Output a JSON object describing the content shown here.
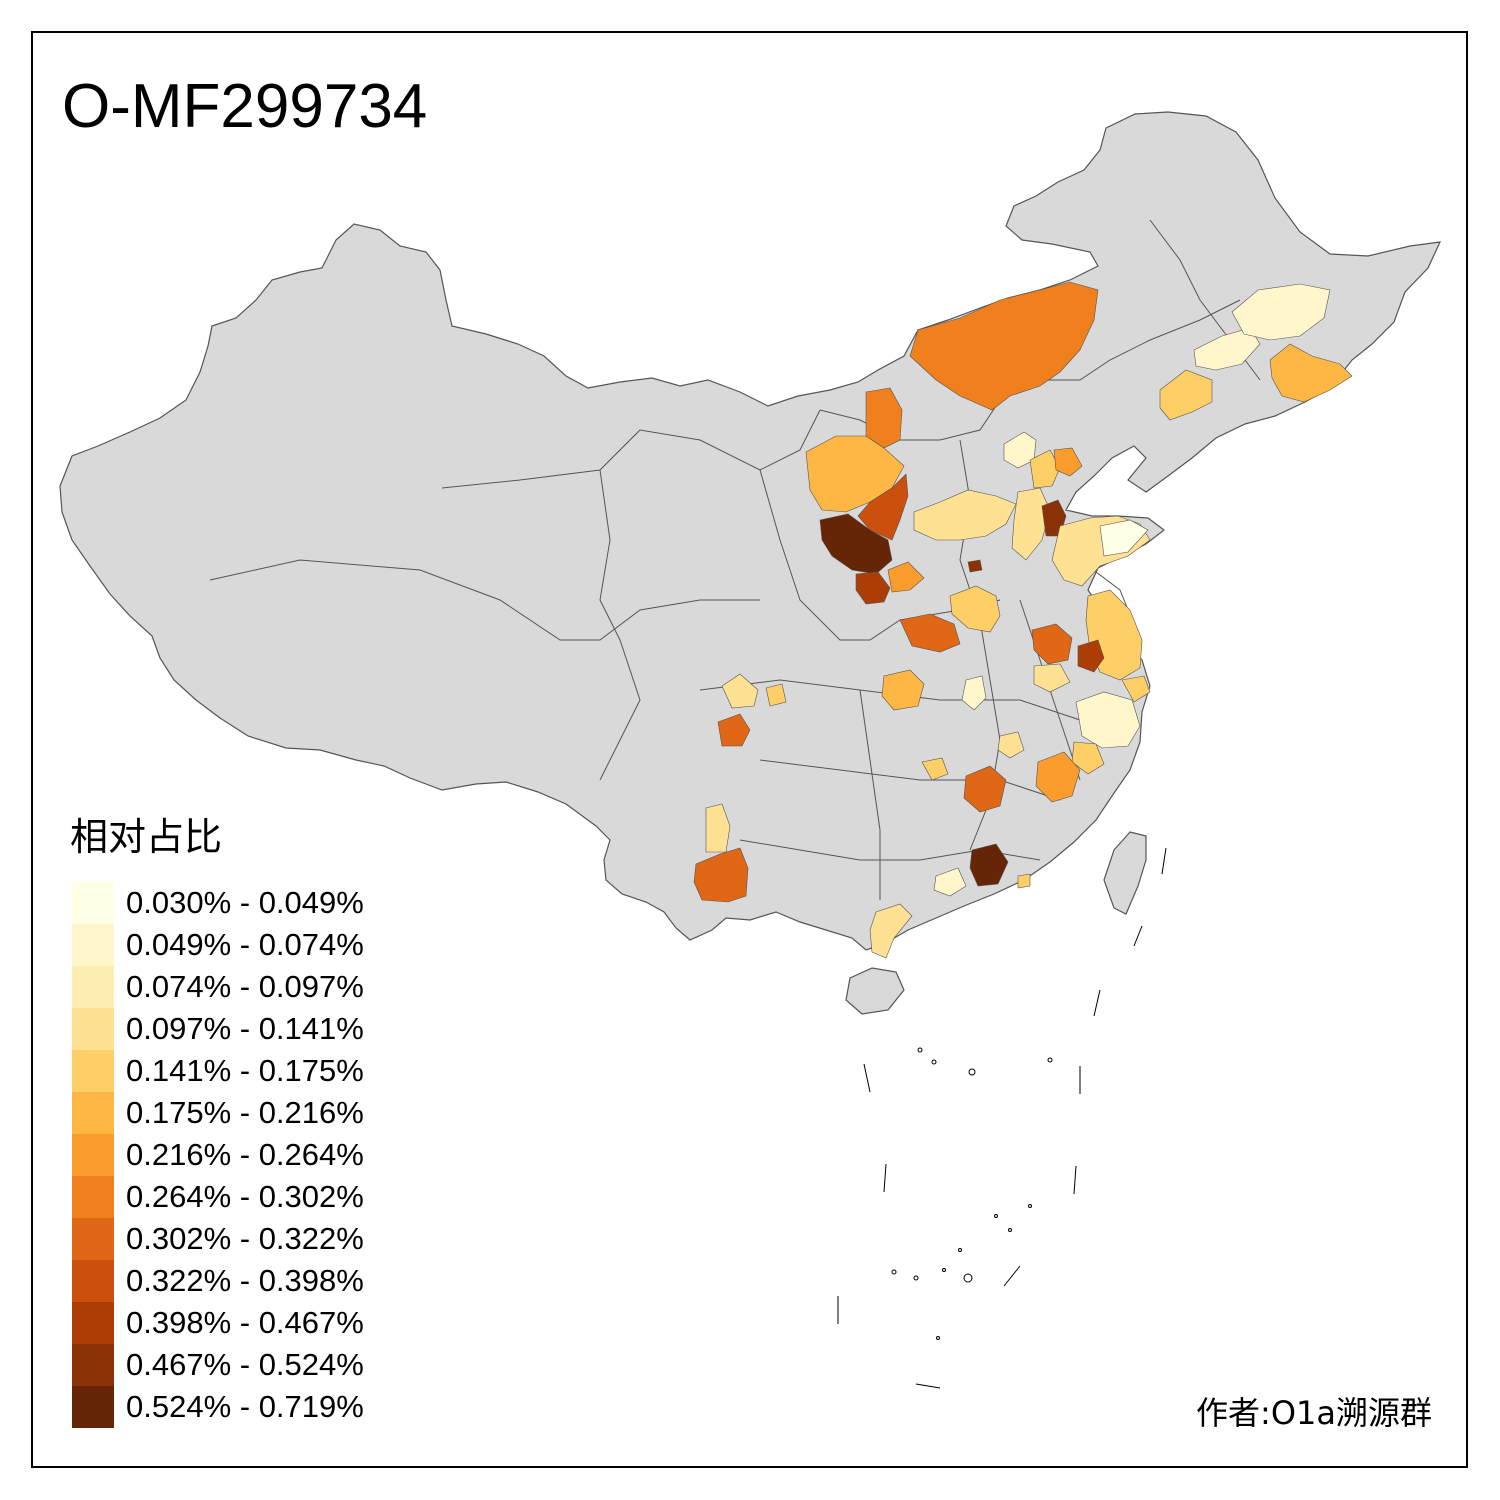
{
  "title": "O-MF299734",
  "legend": {
    "title": "相对占比",
    "items": [
      {
        "label": "0.030% - 0.049%",
        "color": "#ffffe5"
      },
      {
        "label": "0.049% - 0.074%",
        "color": "#fff7cb"
      },
      {
        "label": "0.074% - 0.097%",
        "color": "#feedb0"
      },
      {
        "label": "0.097% - 0.141%",
        "color": "#fee193"
      },
      {
        "label": "0.141% - 0.175%",
        "color": "#fece67"
      },
      {
        "label": "0.175% - 0.216%",
        "color": "#feb644"
      },
      {
        "label": "0.216% - 0.264%",
        "color": "#fb9c2c"
      },
      {
        "label": "0.264% - 0.302%",
        "color": "#f0801e"
      },
      {
        "label": "0.302% - 0.322%",
        "color": "#e06716"
      },
      {
        "label": "0.322% - 0.398%",
        "color": "#cc500d"
      },
      {
        "label": "0.398% - 0.467%",
        "color": "#ac3d05"
      },
      {
        "label": "0.467% - 0.524%",
        "color": "#8a3105"
      },
      {
        "label": "0.524% - 0.719%",
        "color": "#662506"
      }
    ]
  },
  "credit": "作者:O1a溯源群",
  "map": {
    "base_color": "#d9d9d9",
    "border_color": "#555555"
  }
}
